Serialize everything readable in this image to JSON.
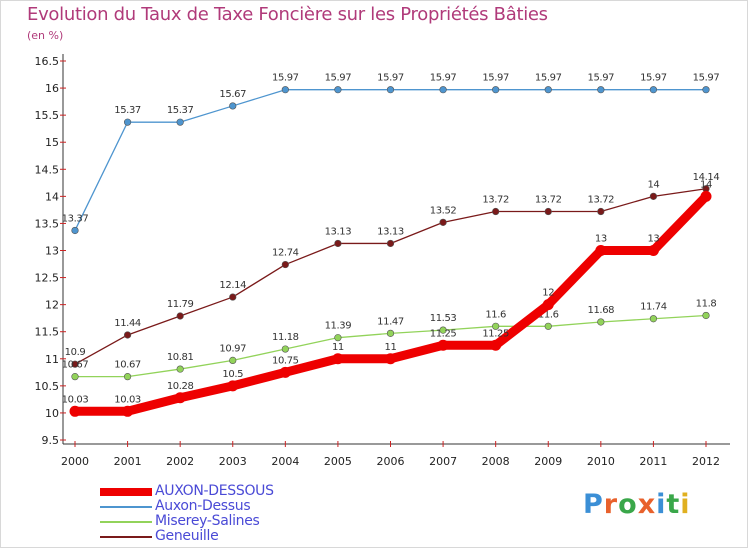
{
  "title": "Evolution du Taux de Taxe Foncière sur les Propriétés Bâties",
  "unit": "(en %)",
  "logo": {
    "letters": [
      "P",
      "r",
      "o",
      "x",
      "i",
      "t",
      "i"
    ],
    "colors": [
      "#3b8fd6",
      "#e8612c",
      "#3aa74a",
      "#e8612c",
      "#3b8fd6",
      "#3aa74a",
      "#e0b020"
    ]
  },
  "chart_data": {
    "type": "line",
    "title": "Evolution du Taux de Taxe Foncière sur les Propriétés Bâties",
    "ylabel": "(en %)",
    "xlabel": "",
    "x": [
      "2000",
      "2001",
      "2002",
      "2003",
      "2004",
      "2005",
      "2006",
      "2007",
      "2008",
      "2009",
      "2010",
      "2011",
      "2012"
    ],
    "ylim": [
      9.5,
      16.5
    ],
    "yticks": [
      "9.5",
      "10",
      "10.5",
      "11",
      "11.5",
      "12",
      "12.5",
      "13",
      "13.5",
      "14",
      "14.5",
      "15",
      "15.5",
      "16",
      "16.5"
    ],
    "grid": false,
    "legend_position": "bottom-left",
    "series": [
      {
        "name": "AUXON-DESSOUS",
        "color": "#ee0000",
        "values": [
          10.03,
          10.03,
          10.28,
          10.5,
          10.75,
          11,
          11,
          11.25,
          11.25,
          12,
          13,
          13,
          14
        ],
        "labels": [
          "10.03",
          "10.03",
          "10.28",
          "10.5",
          "10.75",
          "11",
          "11",
          "11.25",
          "11.25",
          "12",
          "13",
          "13",
          "14"
        ]
      },
      {
        "name": "Auxon-Dessus",
        "color": "#4e95cf",
        "values": [
          13.37,
          15.37,
          15.37,
          15.67,
          15.97,
          15.97,
          15.97,
          15.97,
          15.97,
          15.97,
          15.97,
          15.97,
          15.97
        ],
        "labels": [
          "13.37",
          "15.37",
          "15.37",
          "15.67",
          "15.97",
          "15.97",
          "15.97",
          "15.97",
          "15.97",
          "15.97",
          "15.97",
          "15.97",
          "15.97"
        ]
      },
      {
        "name": "Miserey-Salines",
        "color": "#92d35a",
        "values": [
          10.67,
          10.67,
          10.81,
          10.97,
          11.18,
          11.39,
          11.47,
          11.53,
          11.6,
          11.6,
          11.68,
          11.74,
          11.8
        ],
        "labels": [
          "10.67",
          "10.67",
          "10.81",
          "10.97",
          "11.18",
          "11.39",
          "11.47",
          "11.53",
          "11.6",
          "11.6",
          "11.68",
          "11.74",
          "11.8"
        ]
      },
      {
        "name": "Geneuille",
        "color": "#7a1a1a",
        "values": [
          10.9,
          11.44,
          11.79,
          12.14,
          12.74,
          13.13,
          13.13,
          13.52,
          13.72,
          13.72,
          13.72,
          14,
          14.14
        ],
        "labels": [
          "10.9",
          "11.44",
          "11.79",
          "12.14",
          "12.74",
          "13.13",
          "13.13",
          "13.52",
          "13.72",
          "13.72",
          "13.72",
          "14",
          "14.14"
        ]
      }
    ]
  }
}
